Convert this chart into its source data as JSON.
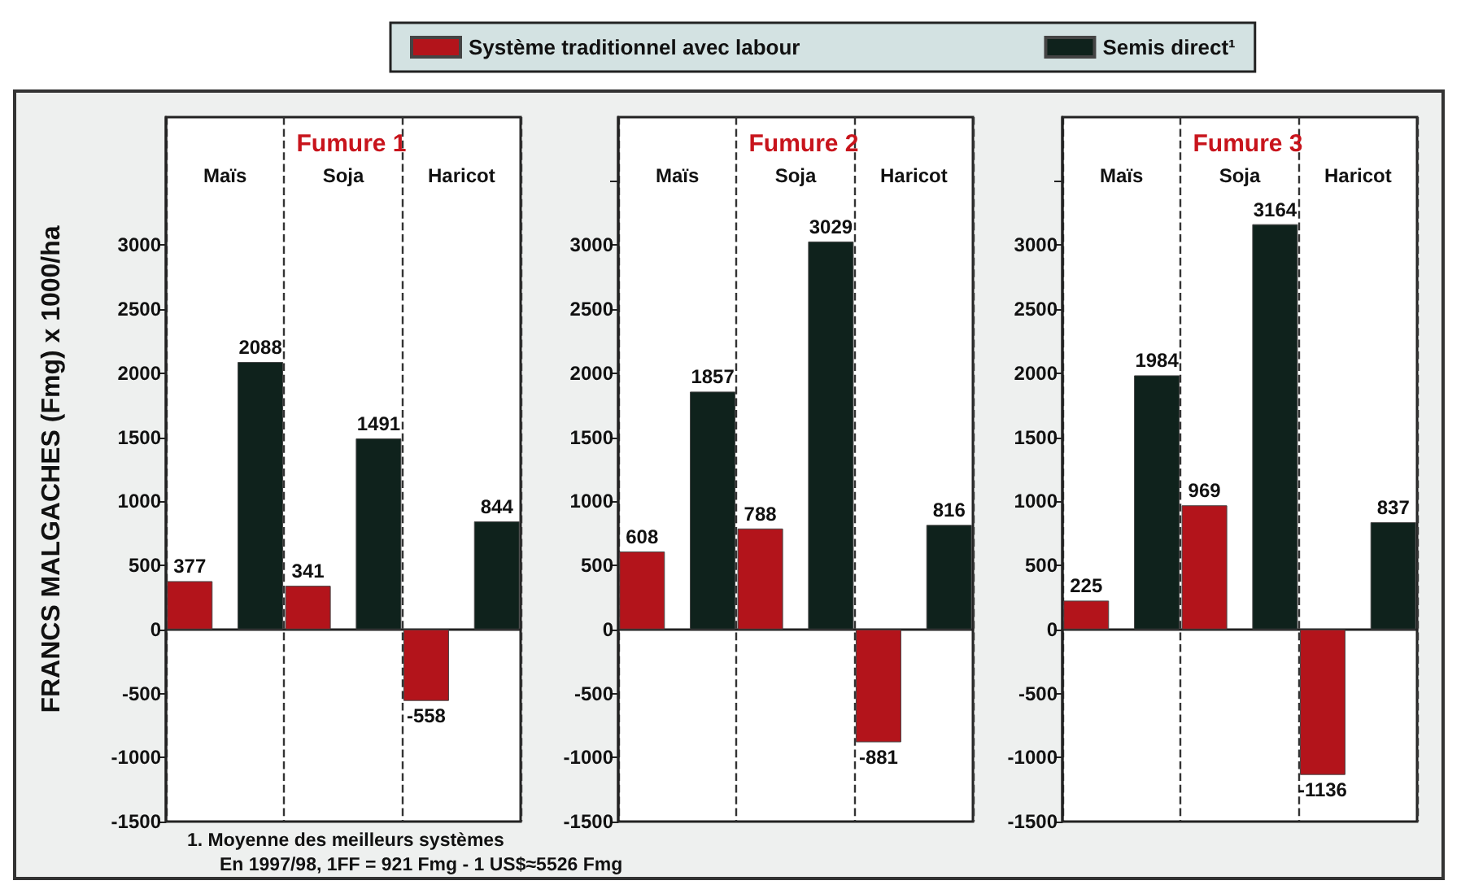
{
  "chart_data": [
    {
      "type": "bar",
      "title": "Fumure 1",
      "ylabel": "FRANCS MALGACHES (Fmg) x 1000/ha",
      "categories": [
        "Maïs",
        "Soja",
        "Haricot"
      ],
      "series": [
        {
          "name": "Système traditionnel avec labour",
          "color": "#b3141b",
          "values": [
            377,
            341,
            -558
          ]
        },
        {
          "name": "Semis direct¹",
          "color": "#0f221c",
          "values": [
            2088,
            1491,
            844
          ]
        }
      ],
      "ylim": [
        -1500,
        4000
      ],
      "yticks": [
        -1500,
        -1000,
        -500,
        0,
        500,
        1000,
        1500,
        2000,
        2500,
        3000
      ],
      "grid": "x",
      "legend": "top",
      "data_labels": true,
      "annotations": [
        "1. Moyenne des meilleurs systèmes",
        "En 1997/98, 1FF = 921 Fmg - 1 US$≈5526 Fmg"
      ]
    },
    {
      "type": "bar",
      "title": "Fumure 2",
      "categories": [
        "Maïs",
        "Soja",
        "Haricot"
      ],
      "series": [
        {
          "color": "#b3141b",
          "values": [
            608,
            788,
            -881
          ]
        },
        {
          "color": "#0f221c",
          "values": [
            1857,
            3029,
            816
          ]
        }
      ],
      "ylim": [
        -1500,
        4000
      ],
      "yticks": [
        -1500,
        -1000,
        -500,
        0,
        500,
        1000,
        1500,
        2000,
        2500,
        3000,
        {
          "value": 3500,
          "label": null
        }
      ],
      "grid": "x",
      "data_labels": true
    },
    {
      "type": "bar",
      "title": "Fumure 3",
      "categories": [
        "Maïs",
        "Soja",
        "Haricot"
      ],
      "series": [
        {
          "color": "#b3141b",
          "values": [
            225,
            969,
            -1136
          ]
        },
        {
          "color": "#0f221c",
          "values": [
            1984,
            3164,
            837
          ]
        }
      ],
      "ylim": [
        -1500,
        4000
      ],
      "yticks": [
        -1500,
        -1000,
        -500,
        0,
        500,
        1000,
        1500,
        2000,
        2500,
        3000,
        {
          "value": 3500,
          "label": null
        }
      ],
      "grid": "x",
      "data_labels": true
    }
  ]
}
